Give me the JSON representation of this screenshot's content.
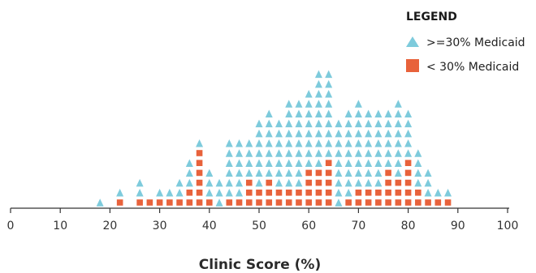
{
  "chart_data": {
    "type": "scatter",
    "title": "",
    "xlabel": "Clinic Score (%)",
    "ylabel": "",
    "xlim": [
      0,
      100
    ],
    "x_ticks": [
      "0",
      "10",
      "20",
      "30",
      "40",
      "50",
      "60",
      "70",
      "80",
      "90",
      "100"
    ],
    "grid": false,
    "legend": {
      "title": "LEGEND",
      "position": "top-right"
    },
    "series": [
      {
        "name": ">=30% Medicaid",
        "marker": "triangle",
        "color": "#7ecbdc",
        "bins_x": [
          18,
          22,
          26,
          28,
          30,
          32,
          34,
          36,
          38,
          40,
          42,
          44,
          46,
          48,
          50,
          52,
          54,
          56,
          58,
          60,
          62,
          64,
          66,
          68,
          70,
          72,
          74,
          76,
          78,
          80,
          82,
          84,
          86,
          88
        ],
        "counts": [
          1,
          1,
          2,
          0,
          1,
          1,
          2,
          3,
          1,
          3,
          3,
          6,
          6,
          4,
          7,
          7,
          7,
          9,
          9,
          8,
          10,
          9,
          9,
          9,
          9,
          8,
          8,
          6,
          8,
          5,
          4,
          3,
          1,
          1
        ]
      },
      {
        "name": "< 30% Medicaid",
        "marker": "square",
        "color": "#e8623b",
        "bins_x": [
          18,
          22,
          26,
          28,
          30,
          32,
          34,
          36,
          38,
          40,
          42,
          44,
          46,
          48,
          50,
          52,
          54,
          56,
          58,
          60,
          62,
          64,
          66,
          68,
          70,
          72,
          74,
          76,
          78,
          80,
          82,
          84,
          86,
          88
        ],
        "counts": [
          0,
          1,
          1,
          1,
          1,
          1,
          1,
          2,
          6,
          1,
          0,
          1,
          1,
          3,
          2,
          3,
          2,
          2,
          2,
          4,
          4,
          5,
          0,
          1,
          2,
          2,
          2,
          4,
          3,
          5,
          2,
          1,
          1,
          1
        ]
      }
    ]
  }
}
